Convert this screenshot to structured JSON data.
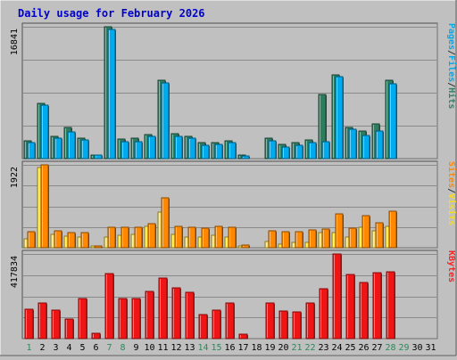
{
  "chart_data": {
    "type": "bar",
    "title": "Daily usage for February 2026",
    "categories": [
      "1",
      "2",
      "3",
      "4",
      "5",
      "6",
      "7",
      "8",
      "9",
      "10",
      "11",
      "12",
      "13",
      "14",
      "15",
      "16",
      "17",
      "18",
      "19",
      "20",
      "21",
      "22",
      "23",
      "24",
      "25",
      "26",
      "27",
      "28",
      "29",
      "30",
      "31"
    ],
    "weekend_days": [
      1,
      7,
      8,
      14,
      15,
      21,
      22,
      28,
      29
    ],
    "panels": [
      {
        "id": "pages-files-hits",
        "max_label": "16841",
        "ymax": 16841,
        "legend": [
          "Pages",
          "/",
          "Files",
          "/",
          "Hits"
        ],
        "legend_colors": [
          "#00aaee",
          "#333333",
          "#00aaee",
          "#333333",
          "#33806a"
        ],
        "series": [
          {
            "name": "Hits",
            "color": "#2e7d5f",
            "values": [
              2300,
              7000,
              2900,
              4000,
              2600,
              500,
              16800,
              2500,
              2600,
              3100,
              10000,
              3200,
              2900,
              2000,
              2100,
              2300,
              400,
              0,
              2600,
              1800,
              2000,
              2400,
              8200,
              10700,
              4000,
              3500,
              4400,
              10000,
              0,
              0,
              0
            ]
          },
          {
            "name": "Files",
            "color": "#00aaee",
            "values": [
              2000,
              6800,
              2600,
              3400,
              2400,
              400,
              16500,
              2200,
              2200,
              2900,
              9700,
              2900,
              2600,
              1700,
              1800,
              2100,
              300,
              0,
              2300,
              1500,
              1700,
              2000,
              2200,
              10500,
              3700,
              3000,
              3500,
              9600,
              0,
              0,
              0
            ]
          },
          {
            "name": "Pages",
            "color": "#1f6fd0",
            "values": [
              0,
              0,
              0,
              0,
              0,
              0,
              0,
              0,
              0,
              0,
              0,
              0,
              0,
              0,
              0,
              0,
              0,
              0,
              0,
              0,
              0,
              0,
              0,
              0,
              0,
              0,
              0,
              0,
              0,
              0,
              0
            ]
          }
        ]
      },
      {
        "id": "sites-visits",
        "max_label": "1922",
        "ymax": 1922,
        "legend": [
          "Sites",
          "/",
          "Visits"
        ],
        "legend_colors": [
          "#ff8800",
          "#333333",
          "#ffdd00"
        ],
        "series": [
          {
            "name": "Visits",
            "color": "#ffe34a",
            "values": [
              200,
              1850,
              310,
              270,
              250,
              25,
              240,
              280,
              300,
              490,
              830,
              300,
              250,
              250,
              280,
              240,
              20,
              0,
              150,
              90,
              120,
              130,
              360,
              360,
              240,
              480,
              400,
              500,
              0,
              0,
              0
            ]
          },
          {
            "name": "Sites",
            "color": "#ff8800",
            "values": [
              380,
              1920,
              390,
              350,
              360,
              40,
              470,
              470,
              480,
              560,
              1160,
              490,
              480,
              460,
              490,
              470,
              70,
              0,
              390,
              380,
              370,
              410,
              440,
              780,
              450,
              740,
              570,
              840,
              0,
              0,
              0
            ]
          }
        ]
      },
      {
        "id": "kbytes",
        "max_label": "417834",
        "ymax": 417834,
        "legend": [
          "KBytes"
        ],
        "legend_colors": [
          "#ff2222"
        ],
        "series": [
          {
            "name": "KBytes",
            "color": "#f01515",
            "values": [
              145000,
              175000,
              140000,
              95000,
              200000,
              28000,
              322000,
              198000,
              198000,
              235000,
              300000,
              250000,
              230000,
              120000,
              140000,
              175000,
              22000,
              0,
              175000,
              135000,
              130000,
              175000,
              245000,
              418000,
              315000,
              275000,
              325000,
              330000,
              0,
              0,
              0
            ]
          }
        ]
      }
    ]
  }
}
